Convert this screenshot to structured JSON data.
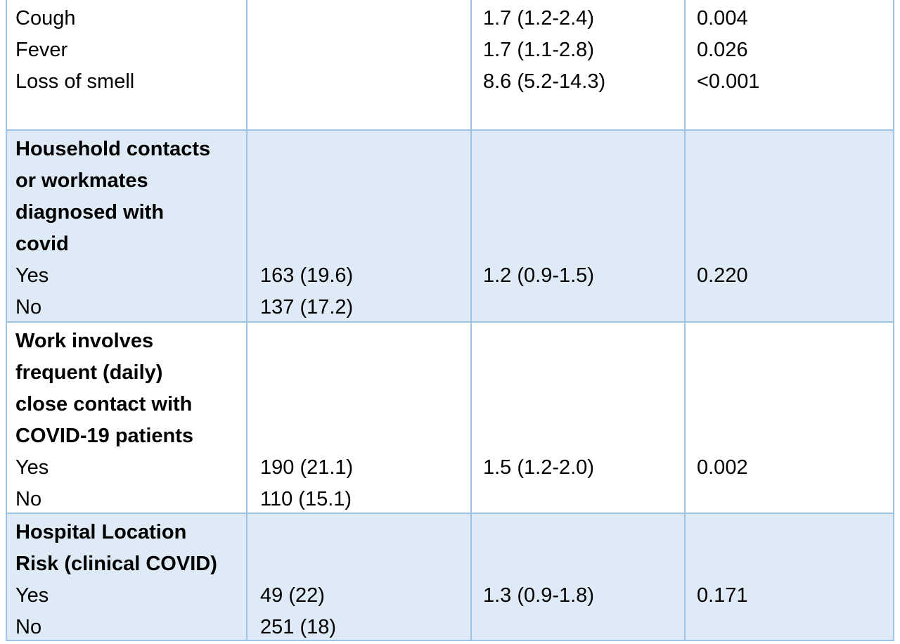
{
  "table": {
    "rows": [
      {
        "heading": [],
        "items": [
          {
            "label": "Cough",
            "or": "1.7 (1.2-2.4)",
            "p": "0.004"
          },
          {
            "label": "Fever",
            "or": "1.7 (1.1-2.8)",
            "p": "0.026"
          },
          {
            "label": "Loss of smell",
            "or": "8.6 (5.2-14.3)",
            "p": "<0.001"
          }
        ]
      },
      {
        "heading": [
          "Household contacts",
          "or workmates",
          "diagnosed with",
          "covid"
        ],
        "items": [
          {
            "label": "Yes",
            "count": "163 (19.6)",
            "or": "1.2 (0.9-1.5)",
            "p": "0.220"
          },
          {
            "label": "No",
            "count": "137 (17.2)"
          }
        ]
      },
      {
        "heading": [
          "Work involves",
          "frequent (daily)",
          "close contact with",
          "COVID-19 patients"
        ],
        "items": [
          {
            "label": "Yes",
            "count": "190 (21.1)",
            "or": "1.5 (1.2-2.0)",
            "p": "0.002"
          },
          {
            "label": "No",
            "count": "110 (15.1)"
          }
        ]
      },
      {
        "heading": [
          "Hospital Location",
          "Risk (clinical COVID)"
        ],
        "items": [
          {
            "label": "Yes",
            "count": "49 (22)",
            "or": "1.3 (0.9-1.8)",
            "p": "0.171"
          },
          {
            "label": "No",
            "count": "251 (18)"
          }
        ]
      }
    ]
  }
}
